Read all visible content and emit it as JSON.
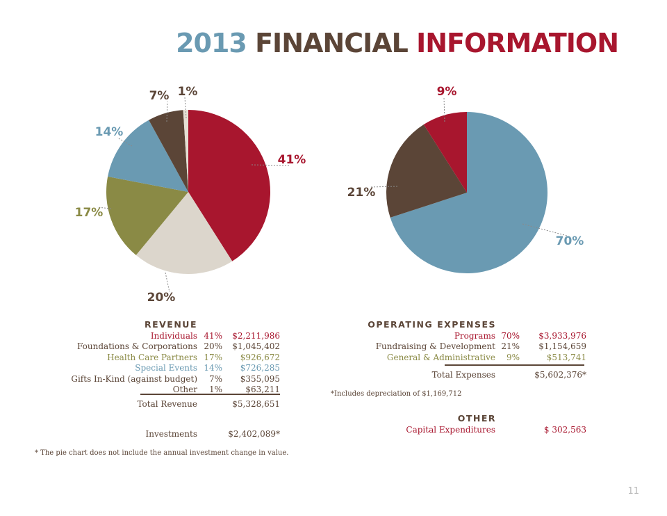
{
  "title": {
    "year": "2013",
    "financial": "FINANCIAL",
    "information": "INFORMATION"
  },
  "colors": {
    "red": "#a8162e",
    "brown": "#5b4537",
    "olive": "#8a8a45",
    "blue": "#6a9ab2",
    "beige": "#dcd6cc",
    "cream": "#e5dfd4"
  },
  "chart_data": [
    {
      "type": "pie",
      "title": "",
      "slices": [
        {
          "label": "Individuals",
          "value": 41,
          "display": "41%",
          "color": "#a8162e"
        },
        {
          "label": "Foundations & Corporations",
          "value": 20,
          "display": "20%",
          "color": "#dcd6cc"
        },
        {
          "label": "Health Care Partners",
          "value": 17,
          "display": "17%",
          "color": "#8a8a45"
        },
        {
          "label": "Special Events",
          "value": 14,
          "display": "14%",
          "color": "#6a9ab2"
        },
        {
          "label": "Gifts In-Kind (against budget)",
          "value": 7,
          "display": "7%",
          "color": "#5b4537"
        },
        {
          "label": "Other",
          "value": 1,
          "display": "1%",
          "color": "#e5dfd4"
        }
      ]
    },
    {
      "type": "pie",
      "title": "",
      "slices": [
        {
          "label": "Programs",
          "value": 70,
          "display": "70%",
          "color": "#6a9ab2"
        },
        {
          "label": "Fundraising & Development",
          "value": 21,
          "display": "21%",
          "color": "#5b4537"
        },
        {
          "label": "General & Administrative",
          "value": 9,
          "display": "9%",
          "color": "#a8162e"
        }
      ]
    }
  ],
  "revenue": {
    "heading": "REVENUE",
    "rows": [
      {
        "label": "Individuals",
        "pct": "41%",
        "amount": "$2,211,986",
        "color": "#a8162e"
      },
      {
        "label": "Foundations & Corporations",
        "pct": "20%",
        "amount": "$1,045,402",
        "color": "#5b4537"
      },
      {
        "label": "Health Care Partners",
        "pct": "17%",
        "amount": "$926,672",
        "color": "#8a8a45"
      },
      {
        "label": "Special Events",
        "pct": "14%",
        "amount": "$726,285",
        "color": "#6a9ab2"
      },
      {
        "label": "Gifts In-Kind (against budget)",
        "pct": "7%",
        "amount": "$355,095",
        "color": "#5b4537"
      },
      {
        "label": "Other",
        "pct": "1%",
        "amount": "$63,211",
        "color": "#5b4537"
      }
    ],
    "total_label": "Total Revenue",
    "total_amount": "$5,328,651",
    "investments_label": "Investments",
    "investments_amount": "$2,402,089*",
    "footnote": "* The pie chart does not include the annual investment change in value."
  },
  "expenses": {
    "heading": "OPERATING EXPENSES",
    "rows": [
      {
        "label": "Programs",
        "pct": "70%",
        "amount": "$3,933,976",
        "color": "#a8162e"
      },
      {
        "label": "Fundraising & Development",
        "pct": "21%",
        "amount": "$1,154,659",
        "color": "#5b4537"
      },
      {
        "label": "General & Administrative",
        "pct": "9%",
        "amount": "$513,741",
        "color": "#8a8a45"
      }
    ],
    "total_label": "Total Expenses",
    "total_amount": "$5,602,376*",
    "footnote": "*Includes depreciation of $1,169,712"
  },
  "other": {
    "heading": "OTHER",
    "label": "Capital Expenditures",
    "amount": "$ 302,563"
  },
  "page_number": "11"
}
